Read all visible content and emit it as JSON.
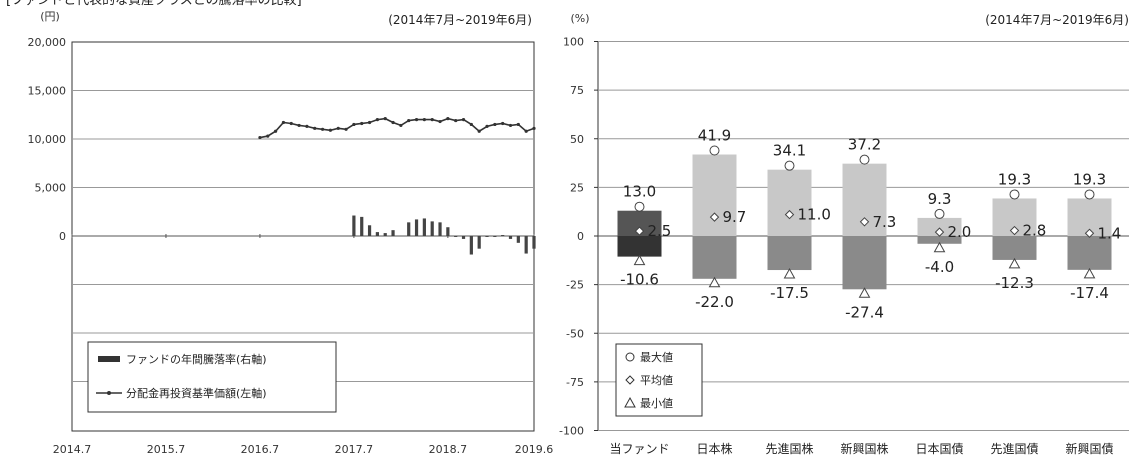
{
  "header_fragment": "[ファンドと代表的な資産クラスとの騰落率の比較]",
  "chart_data": [
    {
      "type": "bar+line",
      "unit": "(円)",
      "period": "(2014年7月~2019年6月)",
      "ylim": [
        0,
        20000
      ],
      "ytick_labels": [
        "20,000",
        "15,000",
        "10,000",
        "5,000",
        "0"
      ],
      "ytick_values": [
        20000,
        15000,
        10000,
        5000,
        0
      ],
      "xtick_labels": [
        "2014.7",
        "2015.7",
        "2016.7",
        "2017.7",
        "2018.7",
        "2019.6"
      ],
      "x_range": [
        "2014-07",
        "2019-06"
      ],
      "grid": true,
      "legend": {
        "placement": "bottom-left",
        "bar_label": "ファンドの年間騰落率(右軸)",
        "line_label": "分配金再投資基準価額(左軸)"
      },
      "line_series": {
        "name": "分配金再投資基準価額(左軸)",
        "x": [
          "2016-07",
          "2016-08",
          "2016-09",
          "2016-10",
          "2016-11",
          "2016-12",
          "2017-01",
          "2017-02",
          "2017-03",
          "2017-04",
          "2017-05",
          "2017-06",
          "2017-07",
          "2017-08",
          "2017-09",
          "2017-10",
          "2017-11",
          "2017-12",
          "2018-01",
          "2018-02",
          "2018-03",
          "2018-04",
          "2018-05",
          "2018-06",
          "2018-07",
          "2018-08",
          "2018-09",
          "2018-10",
          "2018-11",
          "2018-12",
          "2019-01",
          "2019-02",
          "2019-03",
          "2019-04",
          "2019-05",
          "2019-06"
        ],
        "values": [
          10150,
          10300,
          10800,
          11700,
          11600,
          11400,
          11300,
          11100,
          11000,
          10900,
          11100,
          11000,
          11500,
          11600,
          11700,
          12000,
          12100,
          11700,
          11400,
          11900,
          12000,
          12000,
          12000,
          11800,
          12100,
          11900,
          12000,
          11500,
          10800,
          11300,
          11500,
          11600,
          11400,
          11500,
          10800,
          11100
        ]
      },
      "bar_series": {
        "name": "ファンドの年間騰落率(右軸)",
        "right_axis_ylim": [
          -100,
          100
        ],
        "x": [
          "2017-07",
          "2017-08",
          "2017-09",
          "2017-10",
          "2017-11",
          "2017-12",
          "2018-01",
          "2018-02",
          "2018-03",
          "2018-04",
          "2018-05",
          "2018-06",
          "2018-07",
          "2018-08",
          "2018-09",
          "2018-10",
          "2018-11",
          "2018-12",
          "2019-01",
          "2019-02",
          "2019-03",
          "2019-04",
          "2019-05",
          "2019-06"
        ],
        "values": [
          10.5,
          9.8,
          5.5,
          2.0,
          1.5,
          3.0,
          0,
          7.0,
          8.5,
          9.0,
          7.5,
          7.0,
          4.5,
          -0.5,
          -1.5,
          -9.5,
          -6.5,
          -0.5,
          -0.5,
          0.5,
          -1.5,
          -3.5,
          -9.0,
          -6.5
        ]
      }
    },
    {
      "type": "bar",
      "unit": "(%)",
      "period": "(2014年7月~2019年6月)",
      "ylim": [
        -100,
        100
      ],
      "ytick_labels": [
        "100",
        "75",
        "50",
        "25",
        "0",
        "-25",
        "-50",
        "-75",
        "-100"
      ],
      "ytick_values": [
        100,
        75,
        50,
        25,
        0,
        -25,
        -50,
        -75,
        -100
      ],
      "grid": true,
      "categories": [
        "当ファンド",
        "日本株",
        "先進国株",
        "新興国株",
        "日本国債",
        "先進国債",
        "新興国債"
      ],
      "max": [
        13.0,
        41.9,
        34.1,
        37.2,
        9.3,
        19.3,
        19.3
      ],
      "avg": [
        2.5,
        9.7,
        11.0,
        7.3,
        2.0,
        2.8,
        1.4
      ],
      "min": [
        -10.6,
        -22.0,
        -17.5,
        -27.4,
        -4.0,
        -12.3,
        -17.4
      ],
      "max_labels": [
        "13.0",
        "41.9",
        "34.1",
        "37.2",
        "9.3",
        "19.3",
        "19.3"
      ],
      "avg_labels": [
        "2.5",
        "9.7",
        "11.0",
        "7.3",
        "2.0",
        "2.8",
        "1.4"
      ],
      "min_labels": [
        "-10.6",
        "-22.0",
        "-17.5",
        "-27.4",
        "-4.0",
        "-12.3",
        "-17.4"
      ],
      "legend": {
        "placement": "bottom-left",
        "max_label": "最大値",
        "avg_label": "平均値",
        "min_label": "最小値"
      },
      "colors": {
        "fund_pos": "#555555",
        "fund_neg": "#333333",
        "asset_pos": "#c8c8c8",
        "asset_neg": "#8a8a8a"
      }
    }
  ]
}
